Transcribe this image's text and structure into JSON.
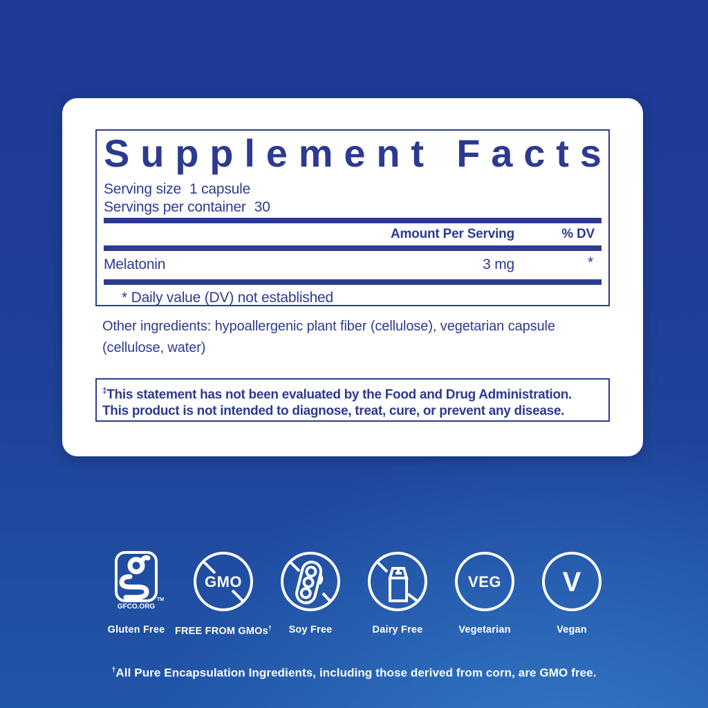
{
  "colors": {
    "navy": "#2c3a90",
    "bg_top": "#1d3a95",
    "bg_bottom": "#2a6fc0",
    "card": "#ffffff",
    "icon_stroke": "#ffffff"
  },
  "panel": {
    "title": "Supplement Facts",
    "serving_size_label": "Serving size",
    "serving_size_value": "1 capsule",
    "servings_label": "Servings per container",
    "servings_value": "30",
    "columns": {
      "amount": "Amount Per Serving",
      "dv": "% DV"
    },
    "rows": [
      {
        "name": "Melatonin",
        "amount": "3 mg",
        "dv": "*"
      }
    ],
    "dv_note": "* Daily value (DV) not established"
  },
  "other_ingredients": {
    "line1": "Other ingredients: hypoallergenic plant fiber (cellulose), vegetarian capsule",
    "line2": "(cellulose, water)"
  },
  "disclaimer": {
    "dagger": "‡",
    "line1": "This statement has not been evaluated by the Food and Drug Administration.",
    "line2": "This product is not intended to diagnose, treat, cure, or prevent any disease."
  },
  "badges": [
    {
      "name": "gluten-free",
      "label": "Gluten Free",
      "org": "GFCO.ORG",
      "tm": "TM"
    },
    {
      "name": "gmo-free",
      "label": "FREE FROM GMOs",
      "label_sup": "†",
      "glyph_text": "GMO"
    },
    {
      "name": "soy-free",
      "label": "Soy Free"
    },
    {
      "name": "dairy-free",
      "label": "Dairy Free"
    },
    {
      "name": "vegetarian",
      "label": "Vegetarian",
      "glyph_text": "VEG"
    },
    {
      "name": "vegan",
      "label": "Vegan",
      "glyph_text": "V"
    }
  ],
  "footer": {
    "dagger": "†",
    "text": "All Pure Encapsulation Ingredients, including those derived from corn, are GMO free."
  }
}
